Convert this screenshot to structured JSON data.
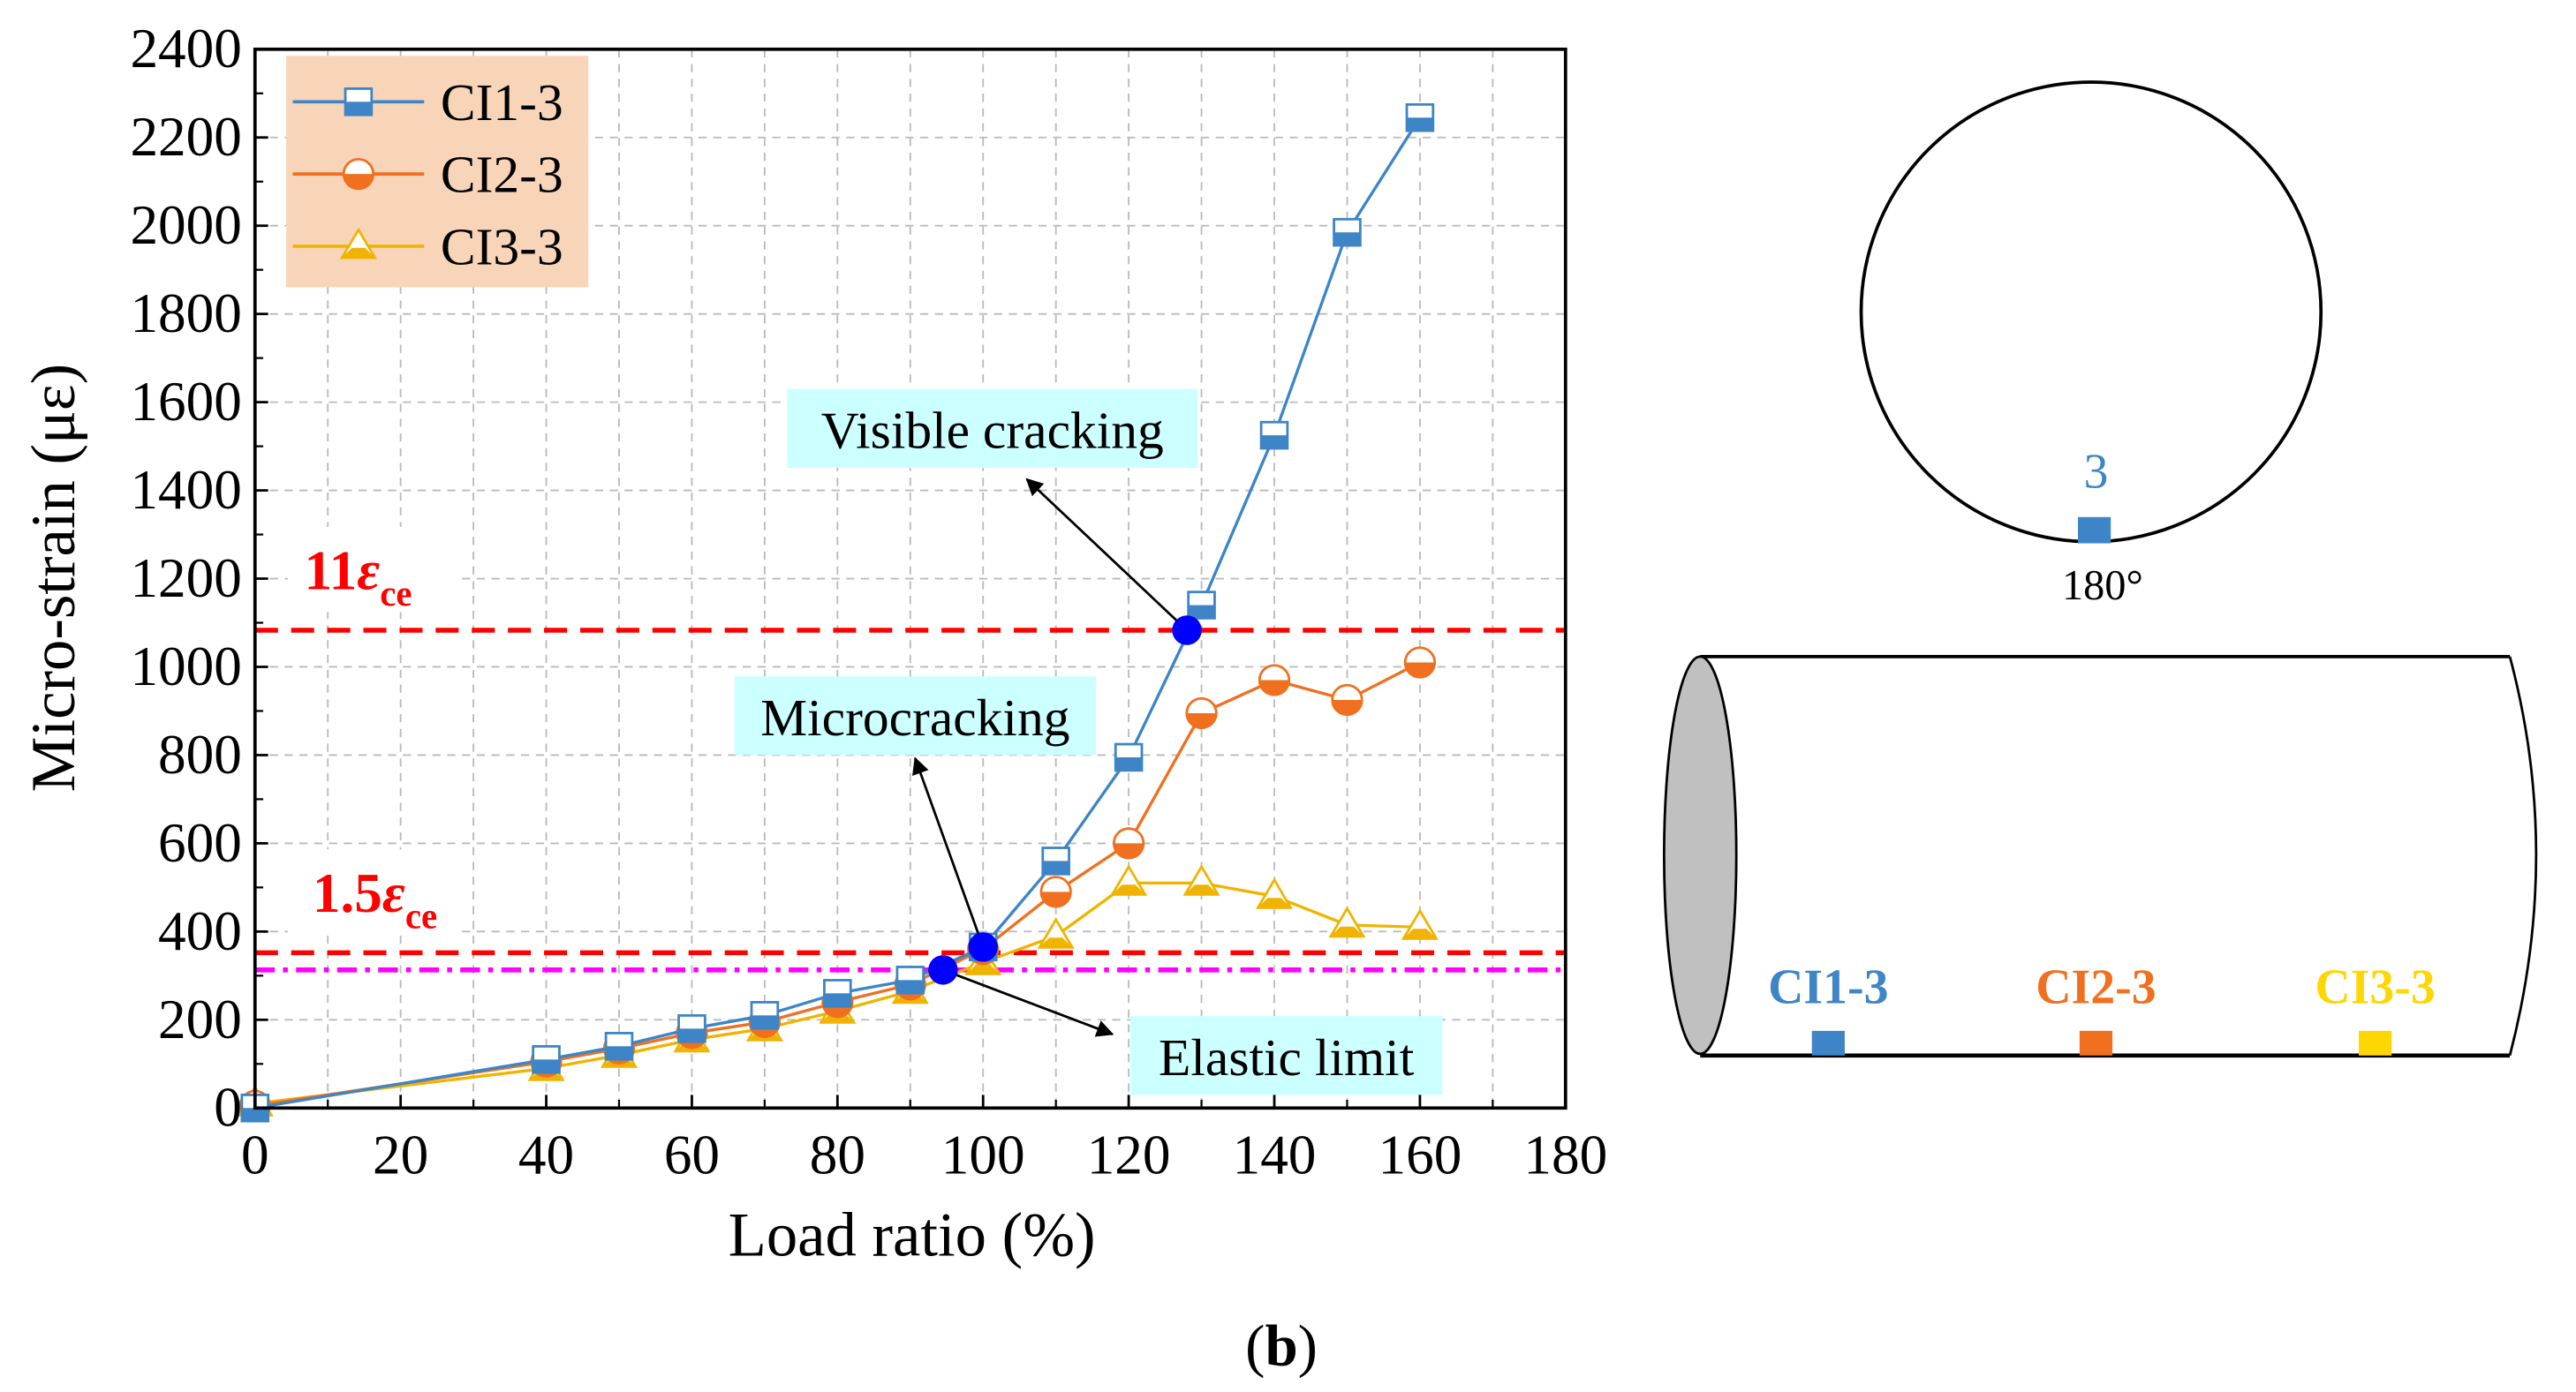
{
  "chart_data": {
    "type": "line",
    "xlabel": "Load ratio (%)",
    "ylabel": "Micro-strain (με)",
    "xlim": [
      0,
      180
    ],
    "ylim": [
      0,
      2400
    ],
    "x_ticks": [
      "0",
      "20",
      "40",
      "60",
      "80",
      "100",
      "120",
      "140",
      "160",
      "180"
    ],
    "y_ticks": [
      "0",
      "200",
      "400",
      "600",
      "800",
      "1000",
      "1200",
      "1400",
      "1600",
      "1800",
      "2000",
      "2200",
      "2400"
    ],
    "grid": true,
    "legend_position": "top-left",
    "x": [
      0,
      40,
      50,
      60,
      70,
      80,
      90,
      100,
      110,
      120,
      130,
      140,
      150,
      160
    ],
    "series": [
      {
        "name": "CI1-3",
        "color": "#3d85c6",
        "marker": "square",
        "values": [
          0,
          110,
          140,
          180,
          210,
          260,
          290,
          365,
          560,
          795,
          1140,
          1525,
          1985,
          2245
        ]
      },
      {
        "name": "CI2-3",
        "color": "#f07020",
        "marker": "circle",
        "values": [
          5,
          105,
          135,
          170,
          195,
          240,
          280,
          360,
          490,
          600,
          895,
          970,
          925,
          1010
        ]
      },
      {
        "name": "CI3-3",
        "color": "#f0b400",
        "marker": "triangle",
        "values": [
          10,
          90,
          120,
          155,
          180,
          220,
          265,
          330,
          390,
          510,
          510,
          480,
          415,
          410
        ]
      }
    ],
    "reference_lines": [
      {
        "label_main": "11",
        "label_sym": "ε",
        "label_sub": "ce",
        "y": 1083,
        "color": "#ff0000",
        "style": "dash"
      },
      {
        "label_main": "1.5",
        "label_sym": "ε",
        "label_sub": "ce",
        "y": 352,
        "color": "#ff0000",
        "style": "dash"
      },
      {
        "label_main": "",
        "y": 313,
        "color": "#ff00ff",
        "style": "dash-dot"
      }
    ],
    "key_points": [
      {
        "label": "Elastic limit",
        "x": 94.5,
        "y": 313
      },
      {
        "label": "Microcracking",
        "x": 100,
        "y": 365
      },
      {
        "label": "Visible cracking",
        "x": 128,
        "y": 1083
      }
    ],
    "panel_label": "(b)",
    "panel_label_letter": "b"
  },
  "schematic": {
    "sensor_number": "3",
    "angle": "180°",
    "sensors": [
      {
        "label": "CI1-3",
        "color": "#3d85c6"
      },
      {
        "label": "CI2-3",
        "color": "#f07020"
      },
      {
        "label": "CI3-3",
        "color": "#ffd700"
      }
    ]
  }
}
